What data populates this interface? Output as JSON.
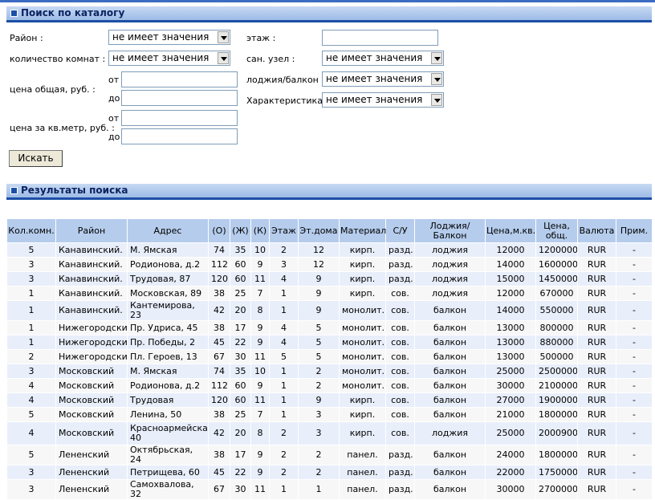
{
  "search": {
    "header": "Поиск по каталогу",
    "district_label": "Район :",
    "district_value": "не имеет значения",
    "rooms_label": "количество комнат :",
    "rooms_value": "не имеет значения",
    "total_price_label": "цена общая, руб. :",
    "sqm_price_label": "цена за кв.метр, руб. :",
    "from_label": "от",
    "to_label": "до",
    "floor_label": "этаж :",
    "floor_value": "",
    "bathroom_label": "сан. узел :",
    "bathroom_value": "не имеет значения",
    "loggia_label": "лоджия/балкон :",
    "loggia_value": "не имеет значения",
    "feature_label": "Характеристика :",
    "feature_value": "не имеет значения",
    "search_button": "Искать"
  },
  "results": {
    "header": "Результаты поиска",
    "columns": [
      "Кол.комн.",
      "Район",
      "Адрес",
      "(О)",
      "(Ж)",
      "(К)",
      "Этаж",
      "Эт.дома",
      "Материал",
      "С/У",
      "Лоджия/Балкон",
      "Цена,м.кв.",
      "Цена, общ.",
      "Валюта",
      "Прим."
    ],
    "rows": [
      [
        "5",
        "Канавинский.",
        "М. Ямская",
        "74",
        "35",
        "10",
        "2",
        "12",
        "кирп.",
        "разд.",
        "лоджия",
        "12000",
        "1200000",
        "RUR",
        "-"
      ],
      [
        "3",
        "Канавинский.",
        "Родионова, д.2",
        "112",
        "60",
        "9",
        "3",
        "12",
        "кирп.",
        "разд.",
        "лоджия",
        "14000",
        "1600000",
        "RUR",
        "-"
      ],
      [
        "3",
        "Канавинский.",
        "Трудовая, 87",
        "120",
        "60",
        "11",
        "4",
        "9",
        "кирп.",
        "разд.",
        "лоджия",
        "15000",
        "1450000",
        "RUR",
        "-"
      ],
      [
        "1",
        "Канавинский.",
        "Московская, 89",
        "38",
        "25",
        "7",
        "1",
        "9",
        "кирп.",
        "сов.",
        "лоджия",
        "12000",
        "670000",
        "RUR",
        "-"
      ],
      [
        "1",
        "Канавинский.",
        "Кантемирова, 23",
        "42",
        "20",
        "8",
        "1",
        "9",
        "монолит.",
        "сов.",
        "балкон",
        "14000",
        "550000",
        "RUR",
        "-"
      ],
      [
        "1",
        "Нижегородский",
        "Пр. Удриса, 45",
        "38",
        "17",
        "9",
        "4",
        "5",
        "монолит.",
        "сов.",
        "балкон",
        "13000",
        "800000",
        "RUR",
        "-"
      ],
      [
        "1",
        "Нижегородский",
        "Пр. Победы, 2",
        "45",
        "22",
        "9",
        "4",
        "5",
        "монолит.",
        "сов.",
        "балкон",
        "13000",
        "880000",
        "RUR",
        "-"
      ],
      [
        "2",
        "Нижегородский",
        "Пл. Героев, 13",
        "67",
        "30",
        "11",
        "5",
        "5",
        "монолит.",
        "сов.",
        "балкон",
        "13000",
        "500000",
        "RUR",
        "-"
      ],
      [
        "3",
        "Московский",
        "М. Ямская",
        "74",
        "35",
        "10",
        "1",
        "2",
        "монолит.",
        "сов.",
        "балкон",
        "25000",
        "2500000",
        "RUR",
        "-"
      ],
      [
        "4",
        "Московский",
        "Родионова, д.2",
        "112",
        "60",
        "9",
        "1",
        "2",
        "монолит.",
        "сов.",
        "балкон",
        "30000",
        "2100000",
        "RUR",
        "-"
      ],
      [
        "4",
        "Московский",
        "Трудовая",
        "120",
        "60",
        "11",
        "1",
        "9",
        "кирп.",
        "сов.",
        "балкон",
        "27000",
        "1900000",
        "RUR",
        "-"
      ],
      [
        "5",
        "Московский",
        "Ленина, 50",
        "38",
        "25",
        "7",
        "1",
        "3",
        "кирп.",
        "сов.",
        "балкон",
        "21000",
        "1800000",
        "RUR",
        "-"
      ],
      [
        "4",
        "Московский",
        "Красноармейская, 40",
        "42",
        "20",
        "8",
        "2",
        "3",
        "кирп.",
        "сов.",
        "лоджия",
        "25000",
        "2000900",
        "RUR",
        "-"
      ],
      [
        "5",
        "Лененский",
        "Октябрьская, 24",
        "38",
        "17",
        "9",
        "2",
        "2",
        "панел.",
        "разд.",
        "балкон",
        "24000",
        "1800000",
        "RUR",
        "-"
      ],
      [
        "3",
        "Лененский",
        "Петрищева, 60",
        "45",
        "22",
        "9",
        "2",
        "2",
        "панел.",
        "разд.",
        "балкон",
        "22000",
        "1750000",
        "RUR",
        "-"
      ],
      [
        "3",
        "Лененский",
        "Самохвалова, 32",
        "67",
        "30",
        "11",
        "1",
        "1",
        "панел.",
        "разд.",
        "балкон",
        "30000",
        "2700000",
        "RUR",
        "-"
      ]
    ]
  }
}
